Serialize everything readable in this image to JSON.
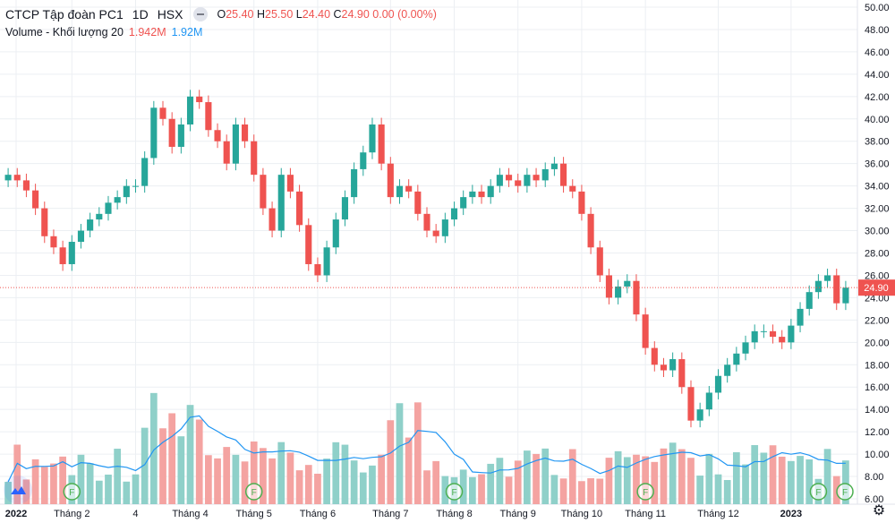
{
  "header": {
    "symbol_title": "CTCP Tập đoàn PC1",
    "interval": "1D",
    "exchange": "HSX",
    "ohlc": {
      "o_label": "O",
      "o": "25.40",
      "h_label": "H",
      "h": "25.50",
      "l_label": "L",
      "l": "24.40",
      "c_label": "C",
      "c": "24.90",
      "change": "0.00 (0.00%)"
    },
    "volume_label": "Volume - Khối lượng 20",
    "volume_value": "1.942M",
    "volume_ma_value": "1.92M"
  },
  "colors": {
    "up": "#26a69a",
    "down": "#ef5350",
    "up_volume": "#8fd0c9",
    "down_volume": "#f4a3a1",
    "volume_ma": "#2196f3",
    "event_marker": "#4caf50",
    "grid": "#eceff3"
  },
  "chart_data": {
    "type": "candlestick",
    "title": "CTCP Tập đoàn PC1 · 1D · HSX",
    "price_axis": {
      "ticks": [
        "50.00",
        "48.00",
        "46.00",
        "44.00",
        "42.00",
        "40.00",
        "38.00",
        "36.00",
        "34.00",
        "32.00",
        "30.00",
        "28.00",
        "26.00",
        "24.00",
        "22.00",
        "20.00",
        "18.00",
        "16.00",
        "14.00",
        "12.00",
        "10.00",
        "8.00",
        "6.00"
      ],
      "range": [
        6,
        50
      ],
      "last_price": "24.90"
    },
    "time_axis": {
      "labels": [
        "2022",
        "Tháng 2",
        "4",
        "Tháng 4",
        "Tháng 5",
        "Tháng 6",
        "Tháng 7",
        "Tháng 8",
        "Tháng 9",
        "Tháng 10",
        "Tháng 11",
        "Tháng 12",
        "2023"
      ],
      "bold": [
        "2022",
        "2023"
      ]
    },
    "price_series": [
      {
        "x": "2022-01",
        "close": 35.0
      },
      {
        "x": "2022-01",
        "close": 34.5
      },
      {
        "x": "2022-01",
        "close": 33.6
      },
      {
        "x": "2022-01",
        "close": 32.0
      },
      {
        "x": "2022-01",
        "close": 29.5
      },
      {
        "x": "2022-01",
        "close": 28.5
      },
      {
        "x": "2022-01",
        "close": 27.0
      },
      {
        "x": "2022-02",
        "close": 29.0
      },
      {
        "x": "2022-02",
        "close": 30.0
      },
      {
        "x": "2022-02",
        "close": 31.0
      },
      {
        "x": "2022-02",
        "close": 31.5
      },
      {
        "x": "2022-02",
        "close": 32.5
      },
      {
        "x": "2022-02",
        "close": 33.0
      },
      {
        "x": "2022-02",
        "close": 34.0
      },
      {
        "x": "2022-03",
        "close": 34.0
      },
      {
        "x": "2022-03",
        "close": 36.5
      },
      {
        "x": "2022-03",
        "close": 41.0
      },
      {
        "x": "2022-03",
        "close": 40.0
      },
      {
        "x": "2022-03",
        "close": 37.5
      },
      {
        "x": "2022-03",
        "close": 39.5
      },
      {
        "x": "2022-04",
        "close": 42.0
      },
      {
        "x": "2022-04",
        "close": 41.5
      },
      {
        "x": "2022-04",
        "close": 39.0
      },
      {
        "x": "2022-04",
        "close": 38.0
      },
      {
        "x": "2022-04",
        "close": 36.0
      },
      {
        "x": "2022-04",
        "close": 39.5
      },
      {
        "x": "2022-04",
        "close": 38.0
      },
      {
        "x": "2022-05",
        "close": 35.0
      },
      {
        "x": "2022-05",
        "close": 32.0
      },
      {
        "x": "2022-05",
        "close": 30.0
      },
      {
        "x": "2022-05",
        "close": 35.0
      },
      {
        "x": "2022-05",
        "close": 33.5
      },
      {
        "x": "2022-05",
        "close": 30.5
      },
      {
        "x": "2022-05",
        "close": 27.0
      },
      {
        "x": "2022-06",
        "close": 26.0
      },
      {
        "x": "2022-06",
        "close": 28.5
      },
      {
        "x": "2022-06",
        "close": 31.0
      },
      {
        "x": "2022-06",
        "close": 33.0
      },
      {
        "x": "2022-06",
        "close": 35.5
      },
      {
        "x": "2022-06",
        "close": 37.0
      },
      {
        "x": "2022-06",
        "close": 39.5
      },
      {
        "x": "2022-06",
        "close": 36.0
      },
      {
        "x": "2022-07",
        "close": 33.0
      },
      {
        "x": "2022-07",
        "close": 34.0
      },
      {
        "x": "2022-07",
        "close": 33.5
      },
      {
        "x": "2022-07",
        "close": 31.5
      },
      {
        "x": "2022-07",
        "close": 30.0
      },
      {
        "x": "2022-07",
        "close": 29.5
      },
      {
        "x": "2022-07",
        "close": 31.0
      },
      {
        "x": "2022-08",
        "close": 32.0
      },
      {
        "x": "2022-08",
        "close": 33.0
      },
      {
        "x": "2022-08",
        "close": 33.5
      },
      {
        "x": "2022-08",
        "close": 33.0
      },
      {
        "x": "2022-08",
        "close": 34.0
      },
      {
        "x": "2022-08",
        "close": 35.0
      },
      {
        "x": "2022-08",
        "close": 34.5
      },
      {
        "x": "2022-09",
        "close": 34.0
      },
      {
        "x": "2022-09",
        "close": 35.0
      },
      {
        "x": "2022-09",
        "close": 34.5
      },
      {
        "x": "2022-09",
        "close": 35.5
      },
      {
        "x": "2022-09",
        "close": 36.0
      },
      {
        "x": "2022-09",
        "close": 34.0
      },
      {
        "x": "2022-09",
        "close": 33.5
      },
      {
        "x": "2022-10",
        "close": 31.5
      },
      {
        "x": "2022-10",
        "close": 28.5
      },
      {
        "x": "2022-10",
        "close": 26.0
      },
      {
        "x": "2022-10",
        "close": 24.0
      },
      {
        "x": "2022-10",
        "close": 25.0
      },
      {
        "x": "2022-10",
        "close": 25.5
      },
      {
        "x": "2022-10",
        "close": 22.5
      },
      {
        "x": "2022-11",
        "close": 19.5
      },
      {
        "x": "2022-11",
        "close": 18.0
      },
      {
        "x": "2022-11",
        "close": 17.5
      },
      {
        "x": "2022-11",
        "close": 18.5
      },
      {
        "x": "2022-11",
        "close": 16.0
      },
      {
        "x": "2022-11",
        "close": 13.0
      },
      {
        "x": "2022-11",
        "close": 14.0
      },
      {
        "x": "2022-11",
        "close": 15.5
      },
      {
        "x": "2022-12",
        "close": 17.0
      },
      {
        "x": "2022-12",
        "close": 18.0
      },
      {
        "x": "2022-12",
        "close": 19.0
      },
      {
        "x": "2022-12",
        "close": 20.0
      },
      {
        "x": "2022-12",
        "close": 21.0
      },
      {
        "x": "2022-12",
        "close": 21.0
      },
      {
        "x": "2022-12",
        "close": 20.5
      },
      {
        "x": "2022-12",
        "close": 20.0
      },
      {
        "x": "2023-01",
        "close": 21.5
      },
      {
        "x": "2023-01",
        "close": 23.0
      },
      {
        "x": "2023-01",
        "close": 24.5
      },
      {
        "x": "2023-01",
        "close": 25.5
      },
      {
        "x": "2023-01",
        "close": 26.0
      },
      {
        "x": "2023-01",
        "close": 23.5
      },
      {
        "x": "2023-01",
        "close": 24.9
      }
    ],
    "volume_series": {
      "name": "Volume - Khối lượng 20",
      "ma_period": 20
    },
    "event_markers": [
      {
        "label": "F",
        "x": "Tháng 2"
      },
      {
        "label": "F",
        "x": "Tháng 5"
      },
      {
        "label": "F",
        "x": "Tháng 8"
      },
      {
        "label": "F",
        "x": "Tháng 11"
      },
      {
        "label": "F",
        "x": "2023"
      },
      {
        "label": "F",
        "x": "2023"
      }
    ],
    "grid": true,
    "legend": "top-left"
  }
}
